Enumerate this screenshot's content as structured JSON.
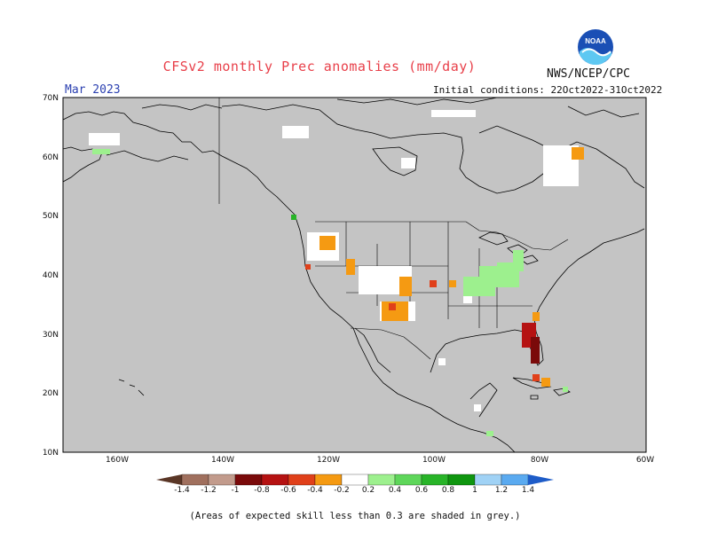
{
  "header": {
    "title": "CFSv2 monthly Prec anomalies (mm/day)",
    "month": "Mar 2023",
    "initial_conditions": "Initial conditions: 22Oct2022-31Oct2022",
    "agency": "NWS/NCEP/CPC",
    "logo_text": "NOAA"
  },
  "map": {
    "region": "North America",
    "lon_range": [
      -170,
      -60
    ],
    "lat_range": [
      10,
      70
    ],
    "background_color": "#c4c4c4",
    "lat_ticks": [
      "70N",
      "60N",
      "50N",
      "40N",
      "30N",
      "20N",
      "10N"
    ],
    "lon_ticks": [
      "160W",
      "140W",
      "120W",
      "100W",
      "80W",
      "60W"
    ]
  },
  "colorbar": {
    "labels": [
      "-1.4",
      "-1.2",
      "-1",
      "-0.8",
      "-0.6",
      "-0.4",
      "-0.2",
      "0.2",
      "0.4",
      "0.6",
      "0.8",
      "1",
      "1.2",
      "1.4"
    ],
    "colors": [
      "#7b4a3a",
      "#a0705e",
      "#c29b8c",
      "#7a0a0a",
      "#b51212",
      "#e0401a",
      "#f59a12",
      "#ffffff",
      "#9df08e",
      "#5ed65a",
      "#28b428",
      "#0f960f",
      "#a0d2f5",
      "#5aaaf0",
      "#2870e0"
    ]
  },
  "footnote": "(Areas of expected skill less than 0.3 are shaded in grey.)"
}
